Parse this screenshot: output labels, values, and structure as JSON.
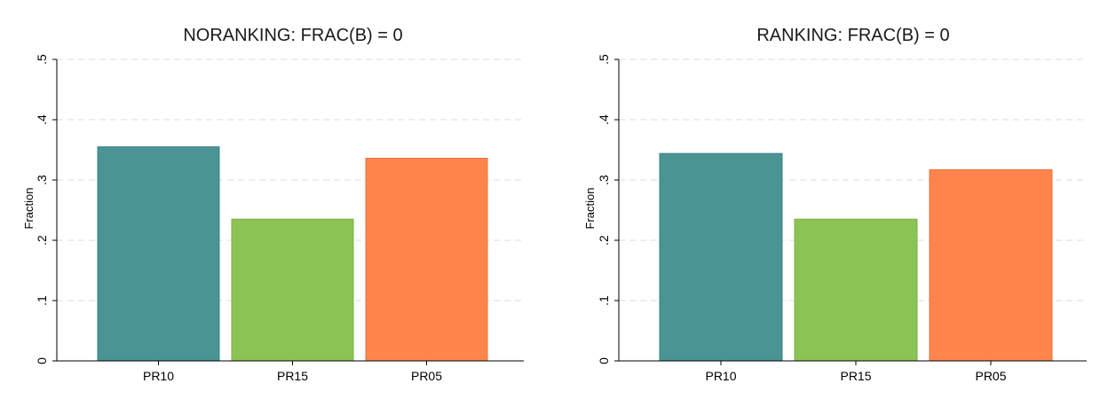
{
  "colors": {
    "teal": "#4a9494",
    "green": "#8bc454",
    "orange": "#ff854c",
    "grid": "#dcdcdc",
    "axis": "#000000",
    "bar_edge_teal": "#3e8181",
    "bar_edge_green": "#78b043",
    "bar_edge_orange": "#e9733d"
  },
  "chart_data": [
    {
      "type": "bar",
      "title": "NORANKING: FRAC(B) = 0",
      "ylabel": "Fraction",
      "xlabel": "",
      "categories": [
        "PR10",
        "PR15",
        "PR05"
      ],
      "values": [
        0.355,
        0.235,
        0.336
      ],
      "bar_colors": [
        "#4a9494",
        "#8bc454",
        "#ff854c"
      ],
      "ylim": [
        0,
        0.5
      ],
      "yticks": [
        0,
        0.1,
        0.2,
        0.3,
        0.4,
        0.5
      ],
      "ytick_labels": [
        "0",
        ".1",
        ".2",
        ".3",
        ".4",
        ".5"
      ],
      "grid": true,
      "legend": "none"
    },
    {
      "type": "bar",
      "title": "RANKING: FRAC(B) = 0",
      "ylabel": "Fraction",
      "xlabel": "",
      "categories": [
        "PR10",
        "PR15",
        "PR05"
      ],
      "values": [
        0.344,
        0.235,
        0.317
      ],
      "bar_colors": [
        "#4a9494",
        "#8bc454",
        "#ff854c"
      ],
      "ylim": [
        0,
        0.5
      ],
      "yticks": [
        0,
        0.1,
        0.2,
        0.3,
        0.4,
        0.5
      ],
      "ytick_labels": [
        "0",
        ".1",
        ".2",
        ".3",
        ".4",
        ".5"
      ],
      "grid": true,
      "legend": "none"
    }
  ]
}
